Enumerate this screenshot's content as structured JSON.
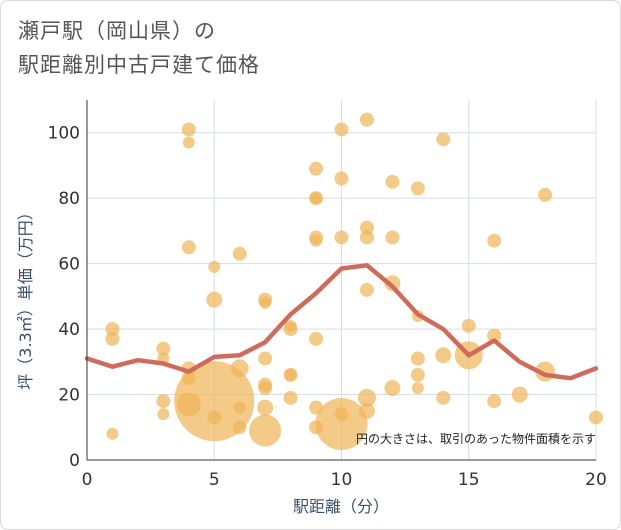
{
  "title_line1": "瀬戸駅（岡山県）の",
  "title_line2": "駅距離別中古戸建て価格",
  "chart_data": {
    "type": "scatter",
    "title": "瀬戸駅（岡山県）の 駅距離別中古戸建て価格",
    "xlabel": "駅距離（分）",
    "ylabel": "坪（3.3㎡）単価（万円）",
    "xlim": [
      0,
      20
    ],
    "ylim": [
      0,
      110
    ],
    "xticks": [
      0,
      5,
      10,
      15,
      20
    ],
    "yticks": [
      0,
      20,
      40,
      60,
      80,
      100
    ],
    "xtick_labels": [
      "0",
      "5",
      "10",
      "15",
      "20"
    ],
    "ytick_labels": [
      "0",
      "20",
      "40",
      "60",
      "80",
      "100"
    ],
    "note": "円の大きさは、取引のあった物件面積を示す",
    "colors": {
      "bubble": "#f0b455",
      "line": "#d06a5a",
      "grid": "#d6dde4"
    },
    "bubbles": [
      {
        "x": 1,
        "y": 40,
        "s": 7
      },
      {
        "x": 1,
        "y": 37,
        "s": 7
      },
      {
        "x": 1,
        "y": 8,
        "s": 6
      },
      {
        "x": 3,
        "y": 34,
        "s": 7
      },
      {
        "x": 3,
        "y": 31,
        "s": 6
      },
      {
        "x": 3,
        "y": 18,
        "s": 7
      },
      {
        "x": 3,
        "y": 14,
        "s": 6
      },
      {
        "x": 4,
        "y": 101,
        "s": 7
      },
      {
        "x": 4,
        "y": 97,
        "s": 6
      },
      {
        "x": 4,
        "y": 65,
        "s": 7
      },
      {
        "x": 4,
        "y": 28,
        "s": 7
      },
      {
        "x": 4,
        "y": 25,
        "s": 7
      },
      {
        "x": 4,
        "y": 17,
        "s": 12
      },
      {
        "x": 5,
        "y": 59,
        "s": 6
      },
      {
        "x": 5,
        "y": 49,
        "s": 8
      },
      {
        "x": 5,
        "y": 18,
        "s": 40
      },
      {
        "x": 5,
        "y": 13,
        "s": 7
      },
      {
        "x": 6,
        "y": 63,
        "s": 7
      },
      {
        "x": 6,
        "y": 28,
        "s": 9
      },
      {
        "x": 6,
        "y": 16,
        "s": 6
      },
      {
        "x": 6,
        "y": 10,
        "s": 7
      },
      {
        "x": 7,
        "y": 49,
        "s": 7
      },
      {
        "x": 7,
        "y": 48,
        "s": 6
      },
      {
        "x": 7,
        "y": 31,
        "s": 7
      },
      {
        "x": 7,
        "y": 23,
        "s": 7
      },
      {
        "x": 7,
        "y": 22,
        "s": 7
      },
      {
        "x": 7,
        "y": 16,
        "s": 8
      },
      {
        "x": 7,
        "y": 9,
        "s": 16
      },
      {
        "x": 8,
        "y": 41,
        "s": 6
      },
      {
        "x": 8,
        "y": 40,
        "s": 7
      },
      {
        "x": 8,
        "y": 26,
        "s": 7
      },
      {
        "x": 8,
        "y": 26,
        "s": 6
      },
      {
        "x": 8,
        "y": 19,
        "s": 7
      },
      {
        "x": 9,
        "y": 89,
        "s": 7
      },
      {
        "x": 9,
        "y": 80,
        "s": 7
      },
      {
        "x": 9,
        "y": 80,
        "s": 6
      },
      {
        "x": 9,
        "y": 68,
        "s": 7
      },
      {
        "x": 9,
        "y": 67,
        "s": 6
      },
      {
        "x": 9,
        "y": 37,
        "s": 7
      },
      {
        "x": 9,
        "y": 16,
        "s": 7
      },
      {
        "x": 9,
        "y": 10,
        "s": 7
      },
      {
        "x": 10,
        "y": 101,
        "s": 7
      },
      {
        "x": 10,
        "y": 86,
        "s": 7
      },
      {
        "x": 10,
        "y": 68,
        "s": 7
      },
      {
        "x": 10,
        "y": 14,
        "s": 7
      },
      {
        "x": 10,
        "y": 11,
        "s": 26
      },
      {
        "x": 11,
        "y": 104,
        "s": 7
      },
      {
        "x": 11,
        "y": 71,
        "s": 7
      },
      {
        "x": 11,
        "y": 68,
        "s": 7
      },
      {
        "x": 11,
        "y": 52,
        "s": 7
      },
      {
        "x": 11,
        "y": 19,
        "s": 9
      },
      {
        "x": 11,
        "y": 15,
        "s": 8
      },
      {
        "x": 12,
        "y": 85,
        "s": 7
      },
      {
        "x": 12,
        "y": 68,
        "s": 7
      },
      {
        "x": 12,
        "y": 54,
        "s": 8
      },
      {
        "x": 12,
        "y": 22,
        "s": 8
      },
      {
        "x": 13,
        "y": 83,
        "s": 7
      },
      {
        "x": 13,
        "y": 44,
        "s": 6
      },
      {
        "x": 13,
        "y": 31,
        "s": 7
      },
      {
        "x": 13,
        "y": 26,
        "s": 7
      },
      {
        "x": 13,
        "y": 22,
        "s": 6
      },
      {
        "x": 14,
        "y": 98,
        "s": 7
      },
      {
        "x": 14,
        "y": 32,
        "s": 8
      },
      {
        "x": 14,
        "y": 19,
        "s": 7
      },
      {
        "x": 15,
        "y": 41,
        "s": 7
      },
      {
        "x": 15,
        "y": 32,
        "s": 14
      },
      {
        "x": 16,
        "y": 67,
        "s": 7
      },
      {
        "x": 16,
        "y": 38,
        "s": 7
      },
      {
        "x": 16,
        "y": 18,
        "s": 7
      },
      {
        "x": 17,
        "y": 20,
        "s": 8
      },
      {
        "x": 18,
        "y": 81,
        "s": 7
      },
      {
        "x": 18,
        "y": 27,
        "s": 10
      },
      {
        "x": 20,
        "y": 13,
        "s": 7
      }
    ],
    "trend": {
      "x": [
        0,
        1,
        2,
        3,
        4,
        5,
        6,
        7,
        8,
        9,
        10,
        11,
        12,
        13,
        14,
        15,
        16,
        17,
        18,
        19,
        20
      ],
      "y": [
        31,
        28.5,
        30.5,
        29.5,
        27,
        31.5,
        32,
        36,
        44.5,
        51,
        58.5,
        59.5,
        53,
        44.5,
        40,
        32,
        36.5,
        30,
        26,
        25,
        28
      ]
    }
  }
}
